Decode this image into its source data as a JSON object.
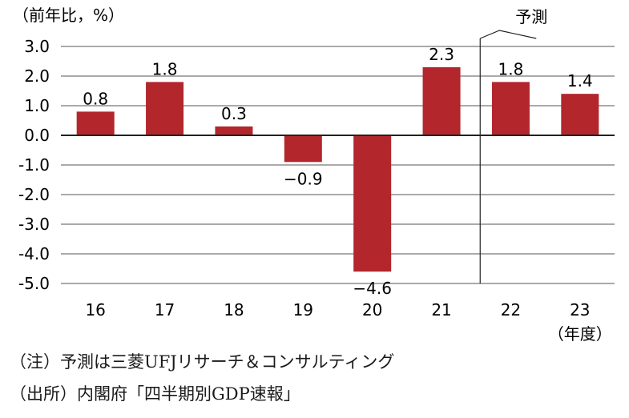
{
  "chart_data": {
    "type": "bar",
    "unit_label": "（前年比，%）",
    "categories": [
      "16",
      "17",
      "18",
      "19",
      "20",
      "21",
      "22",
      "23"
    ],
    "values": [
      0.8,
      1.8,
      0.3,
      -0.9,
      -4.6,
      2.3,
      1.8,
      1.4
    ],
    "value_labels": [
      "0.8",
      "1.8",
      "0.3",
      "−0.9",
      "−4.6",
      "2.3",
      "1.8",
      "1.4"
    ],
    "y_ticks": [
      "3.0",
      "2.0",
      "1.0",
      "0.0",
      "-1.0",
      "-2.0",
      "-3.0",
      "-4.0",
      "-5.0"
    ],
    "ylim": [
      -5,
      3
    ],
    "x_suffix": "（年度）",
    "forecast_label": "予測",
    "forecast_from_category": "22",
    "bar_color": "#b2262c",
    "grid": true
  },
  "notes": {
    "note1": "（注）予測は三菱UFJリサーチ＆コンサルティング",
    "note2": "（出所）内閣府「四半期別GDP速報」"
  }
}
